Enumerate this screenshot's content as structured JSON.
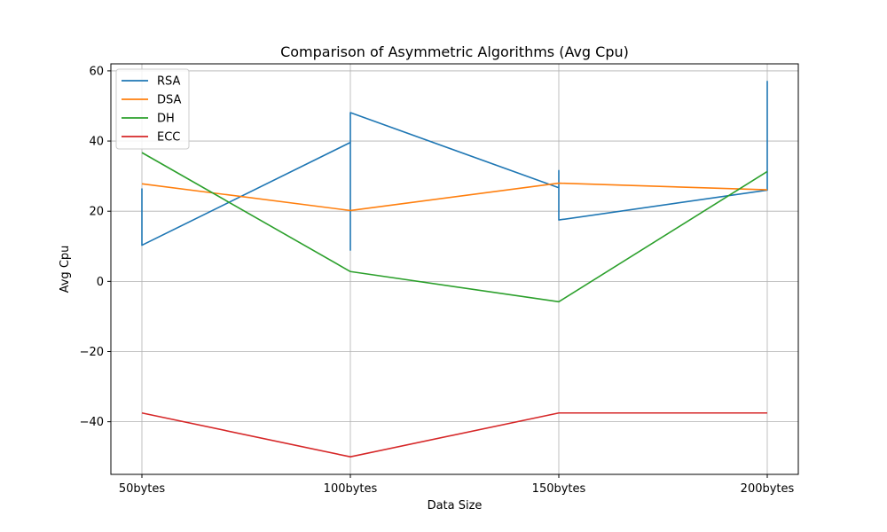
{
  "chart_data": {
    "type": "line",
    "title": "Comparison of Asymmetric Algorithms (Avg Cpu)",
    "xlabel": "Data Size",
    "ylabel": "Avg Cpu",
    "categories": [
      "50bytes",
      "100bytes",
      "150bytes",
      "200bytes"
    ],
    "ylim": [
      -55,
      62
    ],
    "yticks": [
      -40,
      -20,
      0,
      20,
      40,
      60
    ],
    "ytick_labels": [
      "−40",
      "−20",
      "0",
      "20",
      "40",
      "60"
    ],
    "grid": true,
    "legend": "upper-left",
    "series": [
      {
        "name": "RSA",
        "color": "#1f77b4",
        "points": [
          [
            0,
            26.5
          ],
          [
            0,
            10.3
          ],
          [
            1,
            39.6
          ],
          [
            1,
            8.9
          ],
          [
            1,
            48.1
          ],
          [
            2,
            26.7
          ],
          [
            2,
            31.6
          ],
          [
            2,
            17.5
          ],
          [
            3,
            26.0
          ],
          [
            3,
            57.0
          ],
          [
            3,
            45.0
          ]
        ]
      },
      {
        "name": "DSA",
        "color": "#ff7f0e",
        "points": [
          [
            0,
            27.8
          ],
          [
            1,
            20.2
          ],
          [
            2,
            28.0
          ],
          [
            3,
            26.1
          ]
        ]
      },
      {
        "name": "DH",
        "color": "#2ca02c",
        "points": [
          [
            0,
            36.7
          ],
          [
            1,
            2.8
          ],
          [
            2,
            -5.8
          ],
          [
            3,
            31.3
          ]
        ]
      },
      {
        "name": "ECC",
        "color": "#d62728",
        "points": [
          [
            0,
            -37.5
          ],
          [
            1,
            -50.0
          ],
          [
            2,
            -37.5
          ],
          [
            3,
            -37.5
          ]
        ]
      }
    ]
  }
}
